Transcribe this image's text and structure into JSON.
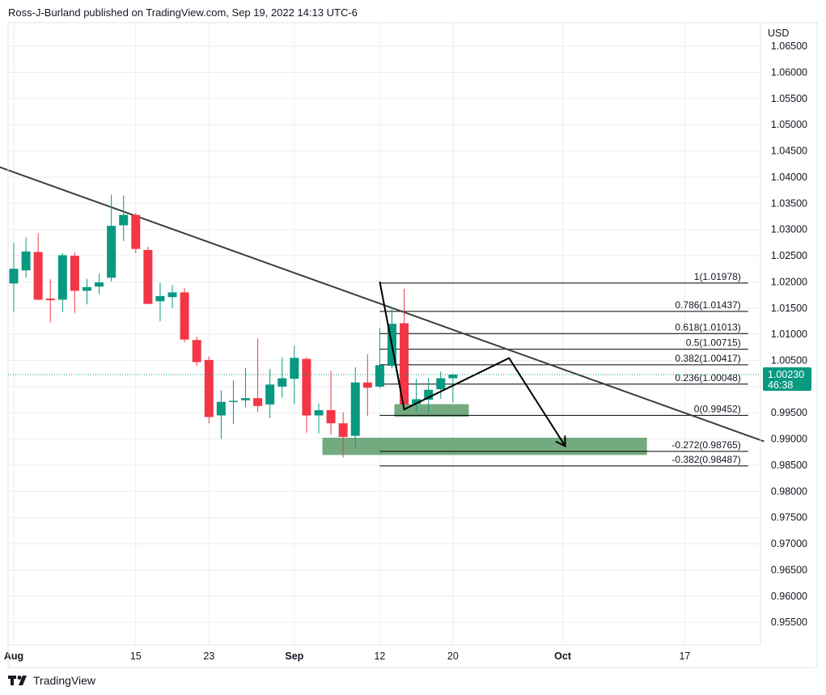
{
  "header": {
    "publisher_line": "Ross-J-Burland published on TradingView.com, Sep 19, 2022 14:13 UTC-6"
  },
  "footer": {
    "logo_text": "TradingView"
  },
  "colors": {
    "up": "#089981",
    "down": "#f23645",
    "trendline": "#3d3d3d",
    "zone_fill": "#5c9b68",
    "grid": "#eceef2",
    "axis_text": "#131722",
    "price_badge": "#089981"
  },
  "chart_data": {
    "type": "candlestick",
    "currency": "USD",
    "y_ticks": [
      "1.06500",
      "1.06000",
      "1.05500",
      "1.05000",
      "1.04500",
      "1.04000",
      "1.03500",
      "1.03000",
      "1.02500",
      "1.02000",
      "1.01500",
      "1.01000",
      "1.00500",
      "1.00000",
      "0.99500",
      "0.99000",
      "0.98500",
      "0.98000",
      "0.97500",
      "0.97000",
      "0.96500",
      "0.96000",
      "0.95500"
    ],
    "x_ticks": [
      {
        "label": "Aug",
        "i": 0,
        "bold": true
      },
      {
        "label": "15",
        "i": 10,
        "bold": false
      },
      {
        "label": "23",
        "i": 16,
        "bold": false
      },
      {
        "label": "Sep",
        "i": 23,
        "bold": true
      },
      {
        "label": "12",
        "i": 30,
        "bold": false
      },
      {
        "label": "20",
        "i": 36,
        "bold": false
      },
      {
        "label": "Oct",
        "i": 45,
        "bold": true
      },
      {
        "label": "17",
        "i": 55,
        "bold": false
      }
    ],
    "ylim": [
      0.9507,
      1.0695
    ],
    "candles": [
      {
        "o": 1.0197,
        "h": 1.0275,
        "l": 1.0143,
        "c": 1.0225
      },
      {
        "o": 1.0222,
        "h": 1.0285,
        "l": 1.0208,
        "c": 1.0258
      },
      {
        "o": 1.0257,
        "h": 1.0293,
        "l": 1.0165,
        "c": 1.0166
      },
      {
        "o": 1.0168,
        "h": 1.0205,
        "l": 1.0123,
        "c": 1.0165
      },
      {
        "o": 1.0166,
        "h": 1.0255,
        "l": 1.0142,
        "c": 1.0251
      },
      {
        "o": 1.025,
        "h": 1.0256,
        "l": 1.0141,
        "c": 1.0183
      },
      {
        "o": 1.0183,
        "h": 1.0206,
        "l": 1.0157,
        "c": 1.019
      },
      {
        "o": 1.0191,
        "h": 1.0216,
        "l": 1.0177,
        "c": 1.0199
      },
      {
        "o": 1.0208,
        "h": 1.0367,
        "l": 1.0201,
        "c": 1.0307
      },
      {
        "o": 1.0308,
        "h": 1.0365,
        "l": 1.0278,
        "c": 1.0328
      },
      {
        "o": 1.0328,
        "h": 1.0332,
        "l": 1.0255,
        "c": 1.0263
      },
      {
        "o": 1.0261,
        "h": 1.0267,
        "l": 1.0157,
        "c": 1.0158
      },
      {
        "o": 1.0163,
        "h": 1.0198,
        "l": 1.0125,
        "c": 1.0173
      },
      {
        "o": 1.0171,
        "h": 1.0194,
        "l": 1.015,
        "c": 1.018
      },
      {
        "o": 1.018,
        "h": 1.0188,
        "l": 1.0085,
        "c": 1.009
      },
      {
        "o": 1.0089,
        "h": 1.0095,
        "l": 1.004,
        "c": 1.0047
      },
      {
        "o": 1.0051,
        "h": 1.0058,
        "l": 0.993,
        "c": 0.9942
      },
      {
        "o": 0.9945,
        "h": 0.9993,
        "l": 0.99,
        "c": 0.9971
      },
      {
        "o": 0.9972,
        "h": 1.0012,
        "l": 0.9929,
        "c": 0.9973
      },
      {
        "o": 0.9974,
        "h": 1.0035,
        "l": 0.9961,
        "c": 0.9978
      },
      {
        "o": 0.9978,
        "h": 1.0092,
        "l": 0.9952,
        "c": 0.9963
      },
      {
        "o": 0.9966,
        "h": 1.0034,
        "l": 0.994,
        "c": 1.0004
      },
      {
        "o": 1.0,
        "h": 1.0056,
        "l": 0.9979,
        "c": 1.0016
      },
      {
        "o": 1.0015,
        "h": 1.0078,
        "l": 0.9967,
        "c": 1.0055
      },
      {
        "o": 1.0053,
        "h": 1.0056,
        "l": 0.9912,
        "c": 0.9945
      },
      {
        "o": 0.9945,
        "h": 0.9968,
        "l": 0.9911,
        "c": 0.9955
      },
      {
        "o": 0.9955,
        "h": 1.003,
        "l": 0.9908,
        "c": 0.993
      },
      {
        "o": 0.993,
        "h": 0.9951,
        "l": 0.9865,
        "c": 0.9904
      },
      {
        "o": 0.9906,
        "h": 1.0037,
        "l": 0.9885,
        "c": 1.0008
      },
      {
        "o": 1.0008,
        "h": 1.0062,
        "l": 0.9944,
        "c": 0.9998
      },
      {
        "o": 1.0,
        "h": 1.0112,
        "l": 0.9997,
        "c": 1.0041
      },
      {
        "o": 1.004,
        "h": 1.0152,
        "l": 1.0035,
        "c": 1.012
      },
      {
        "o": 1.0121,
        "h": 1.0187,
        "l": 0.9966,
        "c": 0.9966
      },
      {
        "o": 0.9967,
        "h": 1.0015,
        "l": 0.9954,
        "c": 0.9976
      },
      {
        "o": 0.9975,
        "h": 1.0017,
        "l": 0.995,
        "c": 0.9994
      },
      {
        "o": 0.9995,
        "h": 1.0029,
        "l": 0.9977,
        "c": 1.0016
      },
      {
        "o": 1.0016,
        "h": 1.0025,
        "l": 0.997,
        "c": 1.0023
      }
    ],
    "trendline": {
      "from": {
        "i": -1.5,
        "y": 1.0422
      },
      "to": {
        "i": 61.5,
        "y": 0.98955
      }
    },
    "fib": {
      "levels": [
        {
          "label": "1(1.01978)",
          "y": 1.01978
        },
        {
          "label": "0.786(1.01437)",
          "y": 1.01437
        },
        {
          "label": "0.618(1.01013)",
          "y": 1.01013
        },
        {
          "label": "0.5(1.00715)",
          "y": 1.00715
        },
        {
          "label": "0.382(1.00417)",
          "y": 1.00417
        },
        {
          "label": "0.236(1.00048)",
          "y": 1.00048
        },
        {
          "label": "0(0.99452)",
          "y": 0.99452
        },
        {
          "label": "-0.272(0.98765)",
          "y": 0.98765
        },
        {
          "label": "-0.382(0.98487)",
          "y": 0.98487
        }
      ],
      "x_start_i": 30,
      "x_end_i": 60.2
    },
    "zones": [
      {
        "from_i": 31.2,
        "to_i": 37.3,
        "y_top": 0.99665,
        "y_bottom": 0.99425
      },
      {
        "from_i": 25.3,
        "to_i": 51.9,
        "y_top": 0.99025,
        "y_bottom": 0.98695
      }
    ],
    "drawn_path": [
      {
        "i": 30.0,
        "y": 1.02005
      },
      {
        "i": 32.0,
        "y": 0.99565
      },
      {
        "i": 40.6,
        "y": 1.00545
      },
      {
        "i": 45.2,
        "y": 0.98865
      }
    ],
    "drawn_wedge": [
      {
        "i": 30.0,
        "y": 1.02005
      },
      {
        "i": 31.7,
        "y": 0.9997
      }
    ],
    "last_price": {
      "value": 1.0023,
      "label": "1.00230",
      "countdown": "46:38"
    }
  }
}
